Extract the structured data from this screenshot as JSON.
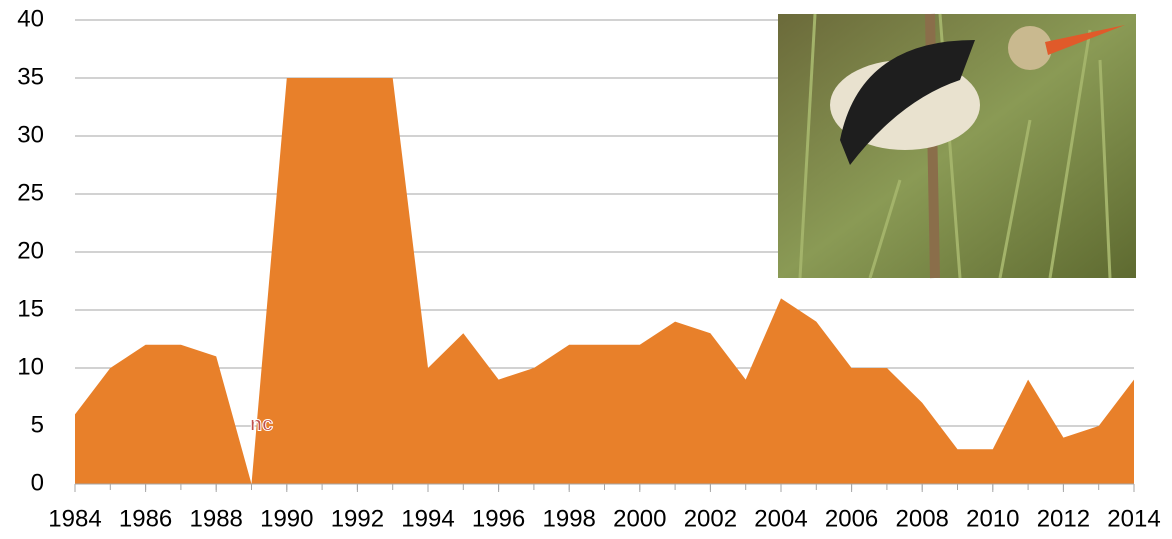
{
  "chart_data": {
    "type": "area",
    "x": [
      1984,
      1985,
      1986,
      1987,
      1988,
      1989,
      1990,
      1991,
      1992,
      1993,
      1994,
      1995,
      1996,
      1997,
      1998,
      1999,
      2000,
      2001,
      2002,
      2003,
      2004,
      2005,
      2006,
      2007,
      2008,
      2009,
      2010,
      2011,
      2012,
      2013,
      2014
    ],
    "values": [
      6,
      10,
      12,
      12,
      11,
      0,
      35,
      35,
      35,
      35,
      10,
      13,
      9,
      10,
      12,
      12,
      12,
      14,
      13,
      9,
      16,
      14,
      10,
      10,
      7,
      3,
      3,
      9,
      4,
      5,
      9
    ],
    "color": "#e8802a",
    "xlim": [
      1984,
      2014
    ],
    "xticks": [
      1984,
      1986,
      1988,
      1990,
      1992,
      1994,
      1996,
      1998,
      2000,
      2002,
      2004,
      2006,
      2008,
      2010,
      2012,
      2014
    ],
    "ylim": [
      0,
      40
    ],
    "yticks": [
      0,
      5,
      10,
      15,
      20,
      25,
      30,
      35,
      40
    ],
    "grid": true,
    "annotations": [
      {
        "text": "nc",
        "x": 1989
      }
    ]
  }
}
